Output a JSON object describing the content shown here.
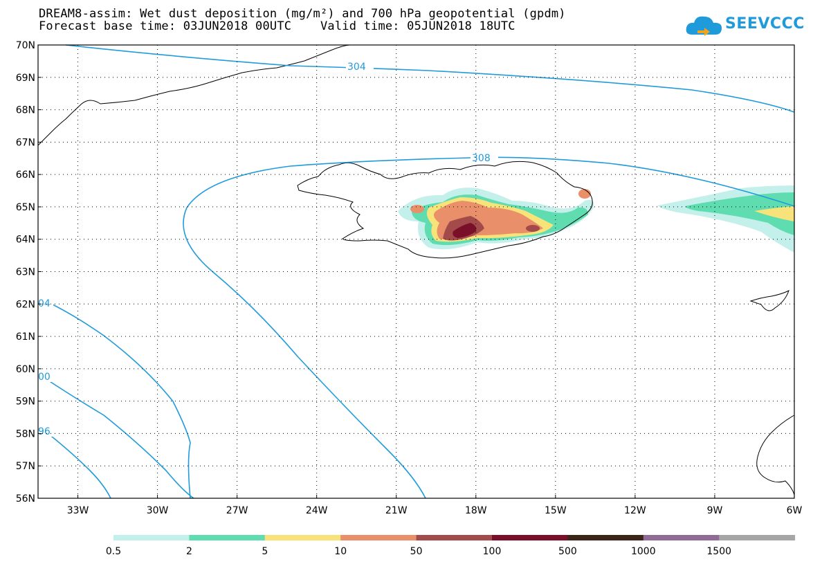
{
  "title": {
    "line1": "DREAM8-assim: Wet dust deposition (mg/m²) and 700 hPa geopotential (gpdm)",
    "line2": "Forecast base time: 03JUN2018 00UTC    Valid time: 05JUN2018 18UTC"
  },
  "logo": {
    "text": "SEEVCCC",
    "icon": "cloud-arrow-icon",
    "color": "#1f9bdc"
  },
  "map": {
    "lat_labels": [
      "70N",
      "69N",
      "68N",
      "67N",
      "66N",
      "65N",
      "64N",
      "63N",
      "62N",
      "61N",
      "60N",
      "59N",
      "58N",
      "57N",
      "56N"
    ],
    "lon_labels": [
      "33W",
      "30W",
      "27W",
      "24W",
      "21W",
      "18W",
      "15W",
      "12W",
      "9W",
      "6W"
    ],
    "lat_range": [
      56,
      70
    ],
    "lon_range": [
      -34.5,
      -6
    ],
    "grid": true,
    "isoline_color": "#1f9bdc",
    "isolines": [
      {
        "label": "304"
      },
      {
        "label": "308"
      },
      {
        "label": "04"
      },
      {
        "label": "00"
      },
      {
        "label": "96"
      }
    ]
  },
  "legend": {
    "colors": [
      "#c3f0ea",
      "#5fdcb0",
      "#f8e37a",
      "#e9906a",
      "#a34b4b",
      "#7a0f2a",
      "#3b2418",
      "#8f6b95",
      "#a6a6a6"
    ],
    "labels": [
      "0.5",
      "2",
      "5",
      "10",
      "50",
      "100",
      "500",
      "1000",
      "1500"
    ]
  }
}
